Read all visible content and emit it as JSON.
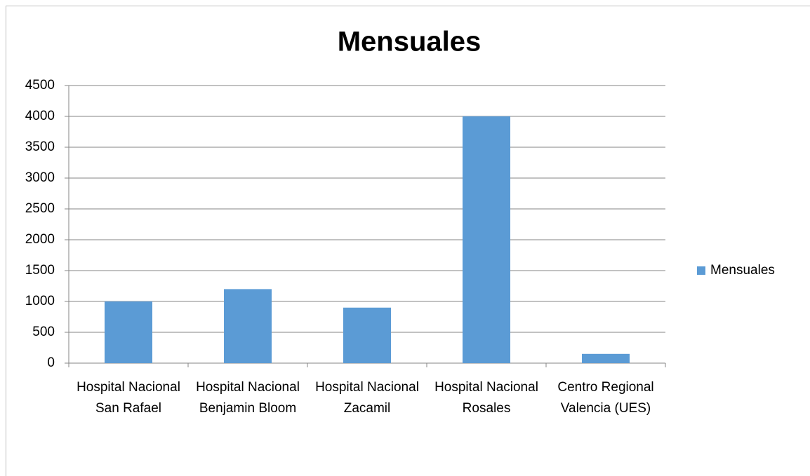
{
  "chart_data": {
    "type": "bar",
    "title": "Mensuales",
    "categories": [
      "Hospital Nacional San Rafael",
      "Hospital Nacional Benjamin Bloom",
      "Hospital Nacional Zacamil",
      "Hospital Nacional Rosales",
      "Centro Regional Valencia (UES)"
    ],
    "series": [
      {
        "name": "Mensuales",
        "color": "#5b9bd5",
        "values": [
          1000,
          1200,
          900,
          4000,
          150
        ]
      }
    ],
    "ylim": [
      0,
      4500
    ],
    "yticks": [
      0,
      500,
      1000,
      1500,
      2000,
      2500,
      3000,
      3500,
      4000,
      4500
    ],
    "grid": true,
    "legend": "right"
  }
}
